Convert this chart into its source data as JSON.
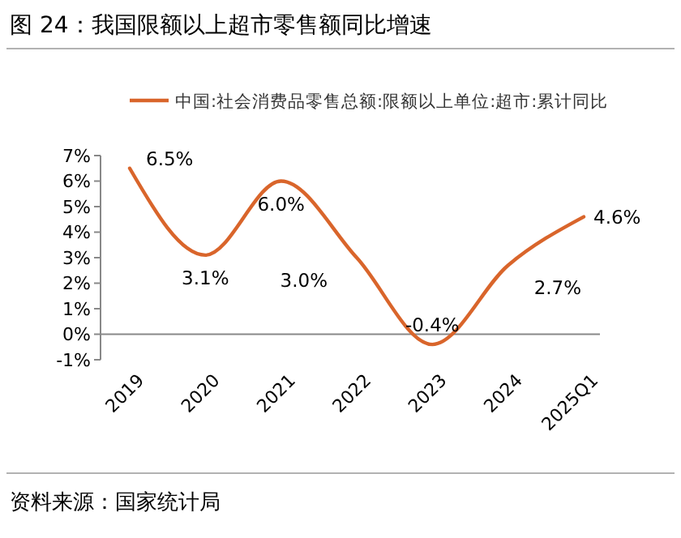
{
  "chart_data": {
    "type": "line",
    "title": "图 24：我国限额以上超市零售额同比增速",
    "categories": [
      "2019",
      "2020",
      "2021",
      "2022",
      "2023",
      "2024",
      "2025Q1"
    ],
    "series": [
      {
        "name": "中国:社会消费品零售总额:限额以上单位:超市:累计同比",
        "color": "#d9652b",
        "values": [
          6.5,
          3.1,
          6.0,
          3.0,
          -0.4,
          2.7,
          4.6
        ]
      }
    ],
    "value_labels": [
      "6.5%",
      "3.1%",
      "6.0%",
      "3.0%",
      "-0.4%",
      "2.7%",
      "4.6%"
    ],
    "ylim": [
      -1,
      7
    ],
    "yticks": [
      {
        "value": -1,
        "label": "-1%"
      },
      {
        "value": 0,
        "label": "0%"
      },
      {
        "value": 1,
        "label": "1%"
      },
      {
        "value": 2,
        "label": "2%"
      },
      {
        "value": 3,
        "label": "3%"
      },
      {
        "value": 4,
        "label": "4%"
      },
      {
        "value": 5,
        "label": "5%"
      },
      {
        "value": 6,
        "label": "6%"
      },
      {
        "value": 7,
        "label": "7%"
      }
    ],
    "grid": false,
    "legend": "top",
    "marker": "none",
    "line_style": "solid",
    "annotations": [
      "资料来源：国家统计局"
    ]
  }
}
